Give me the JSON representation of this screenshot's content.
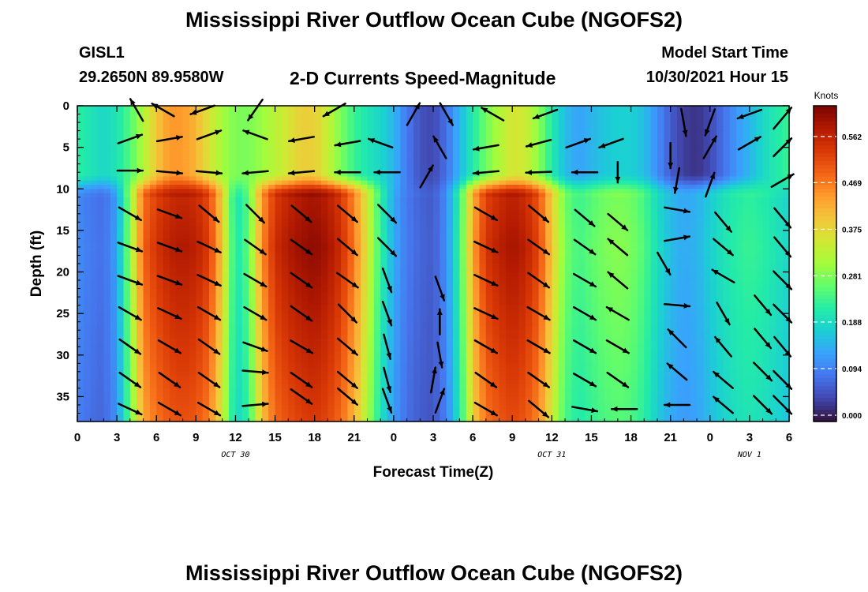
{
  "header": {
    "title": "Mississippi River Outflow Ocean Cube (NGOFS2)",
    "station": "GISL1",
    "coords": "29.2650N  89.9580W",
    "subtitle": "2-D Currents Speed-Magnitude",
    "model_start_label": "Model Start Time",
    "model_start": "10/30/2021 Hour 15"
  },
  "footer": {
    "title": "Mississippi River Outflow Ocean Cube (NGOFS2)"
  },
  "colors": {
    "palette": [
      "#30123b",
      "#4145ab",
      "#4675ed",
      "#39a2fc",
      "#1bcfd4",
      "#24eca6",
      "#61fc6c",
      "#a4fc3b",
      "#d1e834",
      "#f3c63a",
      "#fe9b2d",
      "#f36315",
      "#d93806",
      "#b11901",
      "#7a0403"
    ]
  },
  "chart_data": {
    "type": "heatmap",
    "xlabel": "Forecast Time(Z)",
    "ylabel": "Depth (ft)",
    "xlim": [
      0,
      54
    ],
    "ylim": [
      38,
      0
    ],
    "x_ticks": [
      0,
      3,
      6,
      9,
      12,
      15,
      18,
      21,
      24,
      27,
      30,
      33,
      36,
      39,
      42,
      45,
      48,
      51,
      54
    ],
    "x_tick_labels": [
      "0",
      "3",
      "6",
      "9",
      "12",
      "15",
      "18",
      "21",
      "0",
      "3",
      "6",
      "9",
      "12",
      "15",
      "18",
      "21",
      "0",
      "3",
      "6"
    ],
    "y_ticks": [
      0,
      5,
      10,
      15,
      20,
      25,
      30,
      35
    ],
    "y_tick_labels": [
      "0",
      "5",
      "10",
      "15",
      "20",
      "25",
      "30",
      "35"
    ],
    "date_labels": [
      {
        "x": 12,
        "text": "OCT 30"
      },
      {
        "x": 36,
        "text": "OCT 31"
      },
      {
        "x": 51,
        "text": "NOV 1"
      }
    ],
    "colorbar": {
      "label": "Knots",
      "min": 0,
      "max": 0.656,
      "ticks": [
        0.0,
        0.094,
        0.188,
        0.281,
        0.375,
        0.469,
        0.562
      ],
      "tick_labels": [
        "0.000",
        "0.094",
        "0.188",
        "0.281",
        "0.375",
        "0.469",
        "0.562"
      ]
    },
    "speed_columns_description": "hourly speed (knots) at depth rows; surface layer = depths 0-8 ft, deep layer = depths 9-38 ft",
    "depths": [
      1,
      4,
      7,
      10,
      13,
      16,
      19,
      22,
      25,
      28,
      31,
      34,
      37
    ],
    "times": [
      0,
      1,
      2,
      3,
      4,
      5,
      6,
      7,
      8,
      9,
      10,
      11,
      12,
      13,
      14,
      15,
      16,
      17,
      18,
      19,
      20,
      21,
      22,
      23,
      24,
      25,
      26,
      27,
      28,
      29,
      30,
      31,
      32,
      33,
      34,
      35,
      36,
      37,
      38,
      39,
      40,
      41,
      42,
      43,
      44,
      45,
      46,
      47,
      48,
      49,
      50,
      51,
      52,
      53,
      54
    ],
    "speed_surface": [
      0.24,
      0.22,
      0.2,
      0.22,
      0.27,
      0.34,
      0.42,
      0.47,
      0.47,
      0.44,
      0.38,
      0.33,
      0.3,
      0.3,
      0.32,
      0.35,
      0.38,
      0.41,
      0.41,
      0.36,
      0.3,
      0.25,
      0.22,
      0.2,
      0.16,
      0.1,
      0.06,
      0.05,
      0.09,
      0.16,
      0.23,
      0.29,
      0.34,
      0.38,
      0.37,
      0.31,
      0.23,
      0.17,
      0.14,
      0.16,
      0.18,
      0.19,
      0.19,
      0.17,
      0.12,
      0.07,
      0.04,
      0.03,
      0.05,
      0.09,
      0.13,
      0.16,
      0.2,
      0.23,
      0.25
    ],
    "speed_deep": [
      0.12,
      0.1,
      0.09,
      0.14,
      0.32,
      0.52,
      0.57,
      0.6,
      0.61,
      0.6,
      0.56,
      0.42,
      0.22,
      0.28,
      0.48,
      0.58,
      0.61,
      0.63,
      0.64,
      0.62,
      0.58,
      0.5,
      0.38,
      0.25,
      0.15,
      0.1,
      0.08,
      0.07,
      0.12,
      0.25,
      0.46,
      0.57,
      0.6,
      0.62,
      0.6,
      0.55,
      0.42,
      0.3,
      0.26,
      0.28,
      0.3,
      0.31,
      0.3,
      0.27,
      0.21,
      0.17,
      0.15,
      0.16,
      0.19,
      0.22,
      0.24,
      0.25,
      0.24,
      0.22,
      0.2
    ],
    "vectors": [
      {
        "t": 4.5,
        "d": 0.5,
        "dir": 330,
        "mag": 0.4
      },
      {
        "t": 6.5,
        "d": 0.5,
        "dir": 300,
        "mag": 0.4
      },
      {
        "t": 9.5,
        "d": 0.5,
        "dir": 250,
        "mag": 0.4
      },
      {
        "t": 13.5,
        "d": 0.5,
        "dir": 215,
        "mag": 0.4
      },
      {
        "t": 19.5,
        "d": 0.5,
        "dir": 240,
        "mag": 0.4
      },
      {
        "t": 25.5,
        "d": 1,
        "dir": 30,
        "mag": 0.4
      },
      {
        "t": 28,
        "d": 1,
        "dir": 150,
        "mag": 0.4
      },
      {
        "t": 31.5,
        "d": 1,
        "dir": 300,
        "mag": 0.4
      },
      {
        "t": 35.5,
        "d": 1,
        "dir": 250,
        "mag": 0.4
      },
      {
        "t": 46,
        "d": 2,
        "dir": 170,
        "mag": 0.5
      },
      {
        "t": 48,
        "d": 2,
        "dir": 200,
        "mag": 0.5
      },
      {
        "t": 51,
        "d": 1,
        "dir": 250,
        "mag": 0.4
      },
      {
        "t": 53.5,
        "d": 1.5,
        "dir": 40,
        "mag": 0.5
      },
      {
        "t": 4,
        "d": 4,
        "dir": 70,
        "mag": 0.4
      },
      {
        "t": 7,
        "d": 4,
        "dir": 80,
        "mag": 0.4
      },
      {
        "t": 10,
        "d": 3.5,
        "dir": 70,
        "mag": 0.4
      },
      {
        "t": 13.5,
        "d": 3.5,
        "dir": 290,
        "mag": 0.4
      },
      {
        "t": 17,
        "d": 4,
        "dir": 260,
        "mag": 0.4
      },
      {
        "t": 20.5,
        "d": 4.5,
        "dir": 260,
        "mag": 0.4
      },
      {
        "t": 23,
        "d": 4.5,
        "dir": 290,
        "mag": 0.4
      },
      {
        "t": 27.5,
        "d": 5,
        "dir": 330,
        "mag": 0.4
      },
      {
        "t": 31,
        "d": 5,
        "dir": 260,
        "mag": 0.4
      },
      {
        "t": 35,
        "d": 4.5,
        "dir": 255,
        "mag": 0.4
      },
      {
        "t": 38,
        "d": 4.5,
        "dir": 70,
        "mag": 0.4
      },
      {
        "t": 40.5,
        "d": 4.5,
        "dir": 250,
        "mag": 0.4
      },
      {
        "t": 45,
        "d": 6,
        "dir": 180,
        "mag": 0.4
      },
      {
        "t": 48,
        "d": 5,
        "dir": 30,
        "mag": 0.4
      },
      {
        "t": 51,
        "d": 4.5,
        "dir": 60,
        "mag": 0.4
      },
      {
        "t": 53.5,
        "d": 5,
        "dir": 45,
        "mag": 0.4
      },
      {
        "t": 4,
        "d": 7.8,
        "dir": 90,
        "mag": 0.4
      },
      {
        "t": 7,
        "d": 8,
        "dir": 95,
        "mag": 0.4
      },
      {
        "t": 10,
        "d": 8,
        "dir": 95,
        "mag": 0.4
      },
      {
        "t": 13.5,
        "d": 8,
        "dir": 265,
        "mag": 0.4
      },
      {
        "t": 17,
        "d": 8,
        "dir": 265,
        "mag": 0.4
      },
      {
        "t": 20.5,
        "d": 8,
        "dir": 270,
        "mag": 0.4
      },
      {
        "t": 23.5,
        "d": 8,
        "dir": 270,
        "mag": 0.4
      },
      {
        "t": 26.5,
        "d": 8.5,
        "dir": 30,
        "mag": 0.4
      },
      {
        "t": 31,
        "d": 8,
        "dir": 265,
        "mag": 0.4
      },
      {
        "t": 35,
        "d": 8,
        "dir": 268,
        "mag": 0.4
      },
      {
        "t": 38.5,
        "d": 8,
        "dir": 270,
        "mag": 0.4
      },
      {
        "t": 41,
        "d": 8,
        "dir": 180,
        "mag": 0.2
      },
      {
        "t": 45.5,
        "d": 9,
        "dir": 190,
        "mag": 0.4
      },
      {
        "t": 48,
        "d": 9.5,
        "dir": 20,
        "mag": 0.4
      },
      {
        "t": 53.5,
        "d": 9,
        "dir": 60,
        "mag": 0.4
      },
      {
        "t": 4,
        "d": 13,
        "dir": 120,
        "mag": 0.4
      },
      {
        "t": 7,
        "d": 13,
        "dir": 110,
        "mag": 0.4
      },
      {
        "t": 10,
        "d": 13,
        "dir": 130,
        "mag": 0.4
      },
      {
        "t": 13.5,
        "d": 13,
        "dir": 135,
        "mag": 0.4
      },
      {
        "t": 17,
        "d": 13,
        "dir": 130,
        "mag": 0.4
      },
      {
        "t": 20.5,
        "d": 13,
        "dir": 130,
        "mag": 0.4
      },
      {
        "t": 23.5,
        "d": 13,
        "dir": 135,
        "mag": 0.4
      },
      {
        "t": 31,
        "d": 13,
        "dir": 120,
        "mag": 0.4
      },
      {
        "t": 35,
        "d": 13,
        "dir": 130,
        "mag": 0.4
      },
      {
        "t": 38.5,
        "d": 13.5,
        "dir": 130,
        "mag": 0.4
      },
      {
        "t": 41,
        "d": 14,
        "dir": 130,
        "mag": 0.4
      },
      {
        "t": 45.5,
        "d": 12.5,
        "dir": 100,
        "mag": 0.4
      },
      {
        "t": 49,
        "d": 14,
        "dir": 140,
        "mag": 0.4
      },
      {
        "t": 53.5,
        "d": 13.5,
        "dir": 140,
        "mag": 0.4
      },
      {
        "t": 4,
        "d": 17,
        "dir": 110,
        "mag": 0.4
      },
      {
        "t": 7,
        "d": 17,
        "dir": 110,
        "mag": 0.4
      },
      {
        "t": 10,
        "d": 17,
        "dir": 115,
        "mag": 0.4
      },
      {
        "t": 13.5,
        "d": 17,
        "dir": 125,
        "mag": 0.4
      },
      {
        "t": 17,
        "d": 17,
        "dir": 125,
        "mag": 0.4
      },
      {
        "t": 20.5,
        "d": 17,
        "dir": 130,
        "mag": 0.4
      },
      {
        "t": 23.5,
        "d": 17,
        "dir": 135,
        "mag": 0.4
      },
      {
        "t": 31,
        "d": 17,
        "dir": 115,
        "mag": 0.4
      },
      {
        "t": 35,
        "d": 17,
        "dir": 125,
        "mag": 0.4
      },
      {
        "t": 38.5,
        "d": 17,
        "dir": 125,
        "mag": 0.4
      },
      {
        "t": 41,
        "d": 17,
        "dir": 310,
        "mag": 0.4
      },
      {
        "t": 45.5,
        "d": 16,
        "dir": 80,
        "mag": 0.4
      },
      {
        "t": 49,
        "d": 17,
        "dir": 130,
        "mag": 0.4
      },
      {
        "t": 53.5,
        "d": 17,
        "dir": 140,
        "mag": 0.4
      },
      {
        "t": 4,
        "d": 21,
        "dir": 110,
        "mag": 0.4
      },
      {
        "t": 7,
        "d": 21,
        "dir": 110,
        "mag": 0.4
      },
      {
        "t": 10,
        "d": 21,
        "dir": 115,
        "mag": 0.4
      },
      {
        "t": 13.5,
        "d": 21,
        "dir": 120,
        "mag": 0.4
      },
      {
        "t": 17,
        "d": 21,
        "dir": 125,
        "mag": 0.4
      },
      {
        "t": 20.5,
        "d": 21,
        "dir": 125,
        "mag": 0.4
      },
      {
        "t": 23.5,
        "d": 21,
        "dir": 160,
        "mag": 0.4
      },
      {
        "t": 27.5,
        "d": 22,
        "dir": 160,
        "mag": 0.4
      },
      {
        "t": 31,
        "d": 21,
        "dir": 115,
        "mag": 0.4
      },
      {
        "t": 35,
        "d": 21,
        "dir": 125,
        "mag": 0.4
      },
      {
        "t": 38.5,
        "d": 21,
        "dir": 120,
        "mag": 0.4
      },
      {
        "t": 41,
        "d": 21,
        "dir": 310,
        "mag": 0.4
      },
      {
        "t": 44.5,
        "d": 19,
        "dir": 150,
        "mag": 0.4
      },
      {
        "t": 49,
        "d": 20.5,
        "dir": 300,
        "mag": 0.4
      },
      {
        "t": 53.5,
        "d": 21,
        "dir": 135,
        "mag": 0.4
      },
      {
        "t": 4,
        "d": 25,
        "dir": 120,
        "mag": 0.4
      },
      {
        "t": 7,
        "d": 25,
        "dir": 115,
        "mag": 0.4
      },
      {
        "t": 10,
        "d": 25,
        "dir": 120,
        "mag": 0.4
      },
      {
        "t": 13.5,
        "d": 25,
        "dir": 120,
        "mag": 0.4
      },
      {
        "t": 17,
        "d": 25,
        "dir": 125,
        "mag": 0.4
      },
      {
        "t": 20.5,
        "d": 25,
        "dir": 135,
        "mag": 0.4
      },
      {
        "t": 23.5,
        "d": 25,
        "dir": 160,
        "mag": 0.4
      },
      {
        "t": 27.5,
        "d": 26,
        "dir": 0,
        "mag": 0.4
      },
      {
        "t": 31,
        "d": 25,
        "dir": 115,
        "mag": 0.4
      },
      {
        "t": 35,
        "d": 25,
        "dir": 120,
        "mag": 0.4
      },
      {
        "t": 38.5,
        "d": 25,
        "dir": 120,
        "mag": 0.4
      },
      {
        "t": 41,
        "d": 25,
        "dir": 300,
        "mag": 0.4
      },
      {
        "t": 45.5,
        "d": 24,
        "dir": 95,
        "mag": 0.4
      },
      {
        "t": 49,
        "d": 25,
        "dir": 150,
        "mag": 0.4
      },
      {
        "t": 52,
        "d": 24,
        "dir": 140,
        "mag": 0.4
      },
      {
        "t": 53.5,
        "d": 25,
        "dir": 135,
        "mag": 0.4
      },
      {
        "t": 4,
        "d": 29,
        "dir": 125,
        "mag": 0.4
      },
      {
        "t": 7,
        "d": 29,
        "dir": 120,
        "mag": 0.4
      },
      {
        "t": 10,
        "d": 29,
        "dir": 125,
        "mag": 0.4
      },
      {
        "t": 13.5,
        "d": 29,
        "dir": 110,
        "mag": 0.4
      },
      {
        "t": 17,
        "d": 29,
        "dir": 120,
        "mag": 0.4
      },
      {
        "t": 20.5,
        "d": 29,
        "dir": 130,
        "mag": 0.4
      },
      {
        "t": 23.5,
        "d": 29,
        "dir": 165,
        "mag": 0.4
      },
      {
        "t": 27.5,
        "d": 30,
        "dir": 170,
        "mag": 0.4
      },
      {
        "t": 31,
        "d": 29,
        "dir": 120,
        "mag": 0.4
      },
      {
        "t": 35,
        "d": 29,
        "dir": 120,
        "mag": 0.4
      },
      {
        "t": 38.5,
        "d": 29,
        "dir": 120,
        "mag": 0.4
      },
      {
        "t": 41,
        "d": 29,
        "dir": 120,
        "mag": 0.4
      },
      {
        "t": 45.5,
        "d": 28,
        "dir": 315,
        "mag": 0.4
      },
      {
        "t": 49,
        "d": 29,
        "dir": 320,
        "mag": 0.4
      },
      {
        "t": 52,
        "d": 28,
        "dir": 140,
        "mag": 0.4
      },
      {
        "t": 53.5,
        "d": 29,
        "dir": 140,
        "mag": 0.4
      },
      {
        "t": 4,
        "d": 33,
        "dir": 125,
        "mag": 0.4
      },
      {
        "t": 7,
        "d": 33,
        "dir": 125,
        "mag": 0.4
      },
      {
        "t": 10,
        "d": 33,
        "dir": 125,
        "mag": 0.4
      },
      {
        "t": 13.5,
        "d": 32,
        "dir": 95,
        "mag": 0.4
      },
      {
        "t": 17,
        "d": 33,
        "dir": 125,
        "mag": 0.4
      },
      {
        "t": 20.5,
        "d": 33,
        "dir": 130,
        "mag": 0.4
      },
      {
        "t": 23.5,
        "d": 33,
        "dir": 165,
        "mag": 0.4
      },
      {
        "t": 27,
        "d": 33,
        "dir": 10,
        "mag": 0.4
      },
      {
        "t": 31,
        "d": 33,
        "dir": 125,
        "mag": 0.4
      },
      {
        "t": 35,
        "d": 33,
        "dir": 125,
        "mag": 0.4
      },
      {
        "t": 38.5,
        "d": 33,
        "dir": 120,
        "mag": 0.4
      },
      {
        "t": 41,
        "d": 33,
        "dir": 125,
        "mag": 0.4
      },
      {
        "t": 45.5,
        "d": 32,
        "dir": 310,
        "mag": 0.4
      },
      {
        "t": 49,
        "d": 33,
        "dir": 310,
        "mag": 0.4
      },
      {
        "t": 52,
        "d": 32,
        "dir": 135,
        "mag": 0.4
      },
      {
        "t": 53.5,
        "d": 33,
        "dir": 135,
        "mag": 0.4
      },
      {
        "t": 4,
        "d": 36.5,
        "dir": 115,
        "mag": 0.4
      },
      {
        "t": 7,
        "d": 36.5,
        "dir": 120,
        "mag": 0.4
      },
      {
        "t": 10,
        "d": 36.5,
        "dir": 120,
        "mag": 0.4
      },
      {
        "t": 13.5,
        "d": 36,
        "dir": 85,
        "mag": 0.4
      },
      {
        "t": 17,
        "d": 35,
        "dir": 125,
        "mag": 0.4
      },
      {
        "t": 20.5,
        "d": 35,
        "dir": 130,
        "mag": 0.4
      },
      {
        "t": 23.5,
        "d": 35.5,
        "dir": 160,
        "mag": 0.4
      },
      {
        "t": 27.5,
        "d": 35.5,
        "dir": 20,
        "mag": 0.4
      },
      {
        "t": 31,
        "d": 36.5,
        "dir": 120,
        "mag": 0.4
      },
      {
        "t": 35,
        "d": 36.5,
        "dir": 130,
        "mag": 0.4
      },
      {
        "t": 38.5,
        "d": 36.5,
        "dir": 100,
        "mag": 0.4
      },
      {
        "t": 41.5,
        "d": 36.5,
        "dir": 270,
        "mag": 0.4
      },
      {
        "t": 45.5,
        "d": 36,
        "dir": 270,
        "mag": 0.4
      },
      {
        "t": 49,
        "d": 36,
        "dir": 310,
        "mag": 0.4
      },
      {
        "t": 52,
        "d": 36,
        "dir": 135,
        "mag": 0.4
      },
      {
        "t": 53.5,
        "d": 36,
        "dir": 135,
        "mag": 0.4
      }
    ]
  }
}
